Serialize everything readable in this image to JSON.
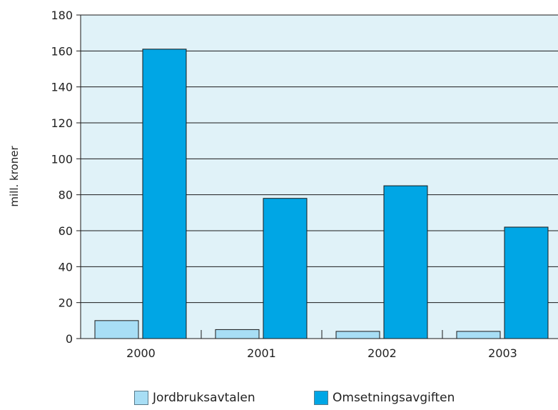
{
  "chart_data": {
    "type": "bar",
    "title": "",
    "xlabel": "",
    "ylabel": "mill. kroner",
    "categories": [
      "2000",
      "2001",
      "2002",
      "2003"
    ],
    "series": [
      {
        "name": "Jordbruksavtalen",
        "values": [
          10,
          5,
          4,
          4
        ],
        "color": "#a8def5"
      },
      {
        "name": "Omsetningsavgiften",
        "values": [
          161,
          78,
          85,
          62
        ],
        "color": "#00a6e5"
      }
    ],
    "ylim": [
      0,
      180
    ],
    "yticks": [
      0,
      20,
      40,
      60,
      80,
      100,
      120,
      140,
      160,
      180
    ],
    "grid": true,
    "legend_position": "bottom",
    "plot_background": "#e0f2f8"
  }
}
